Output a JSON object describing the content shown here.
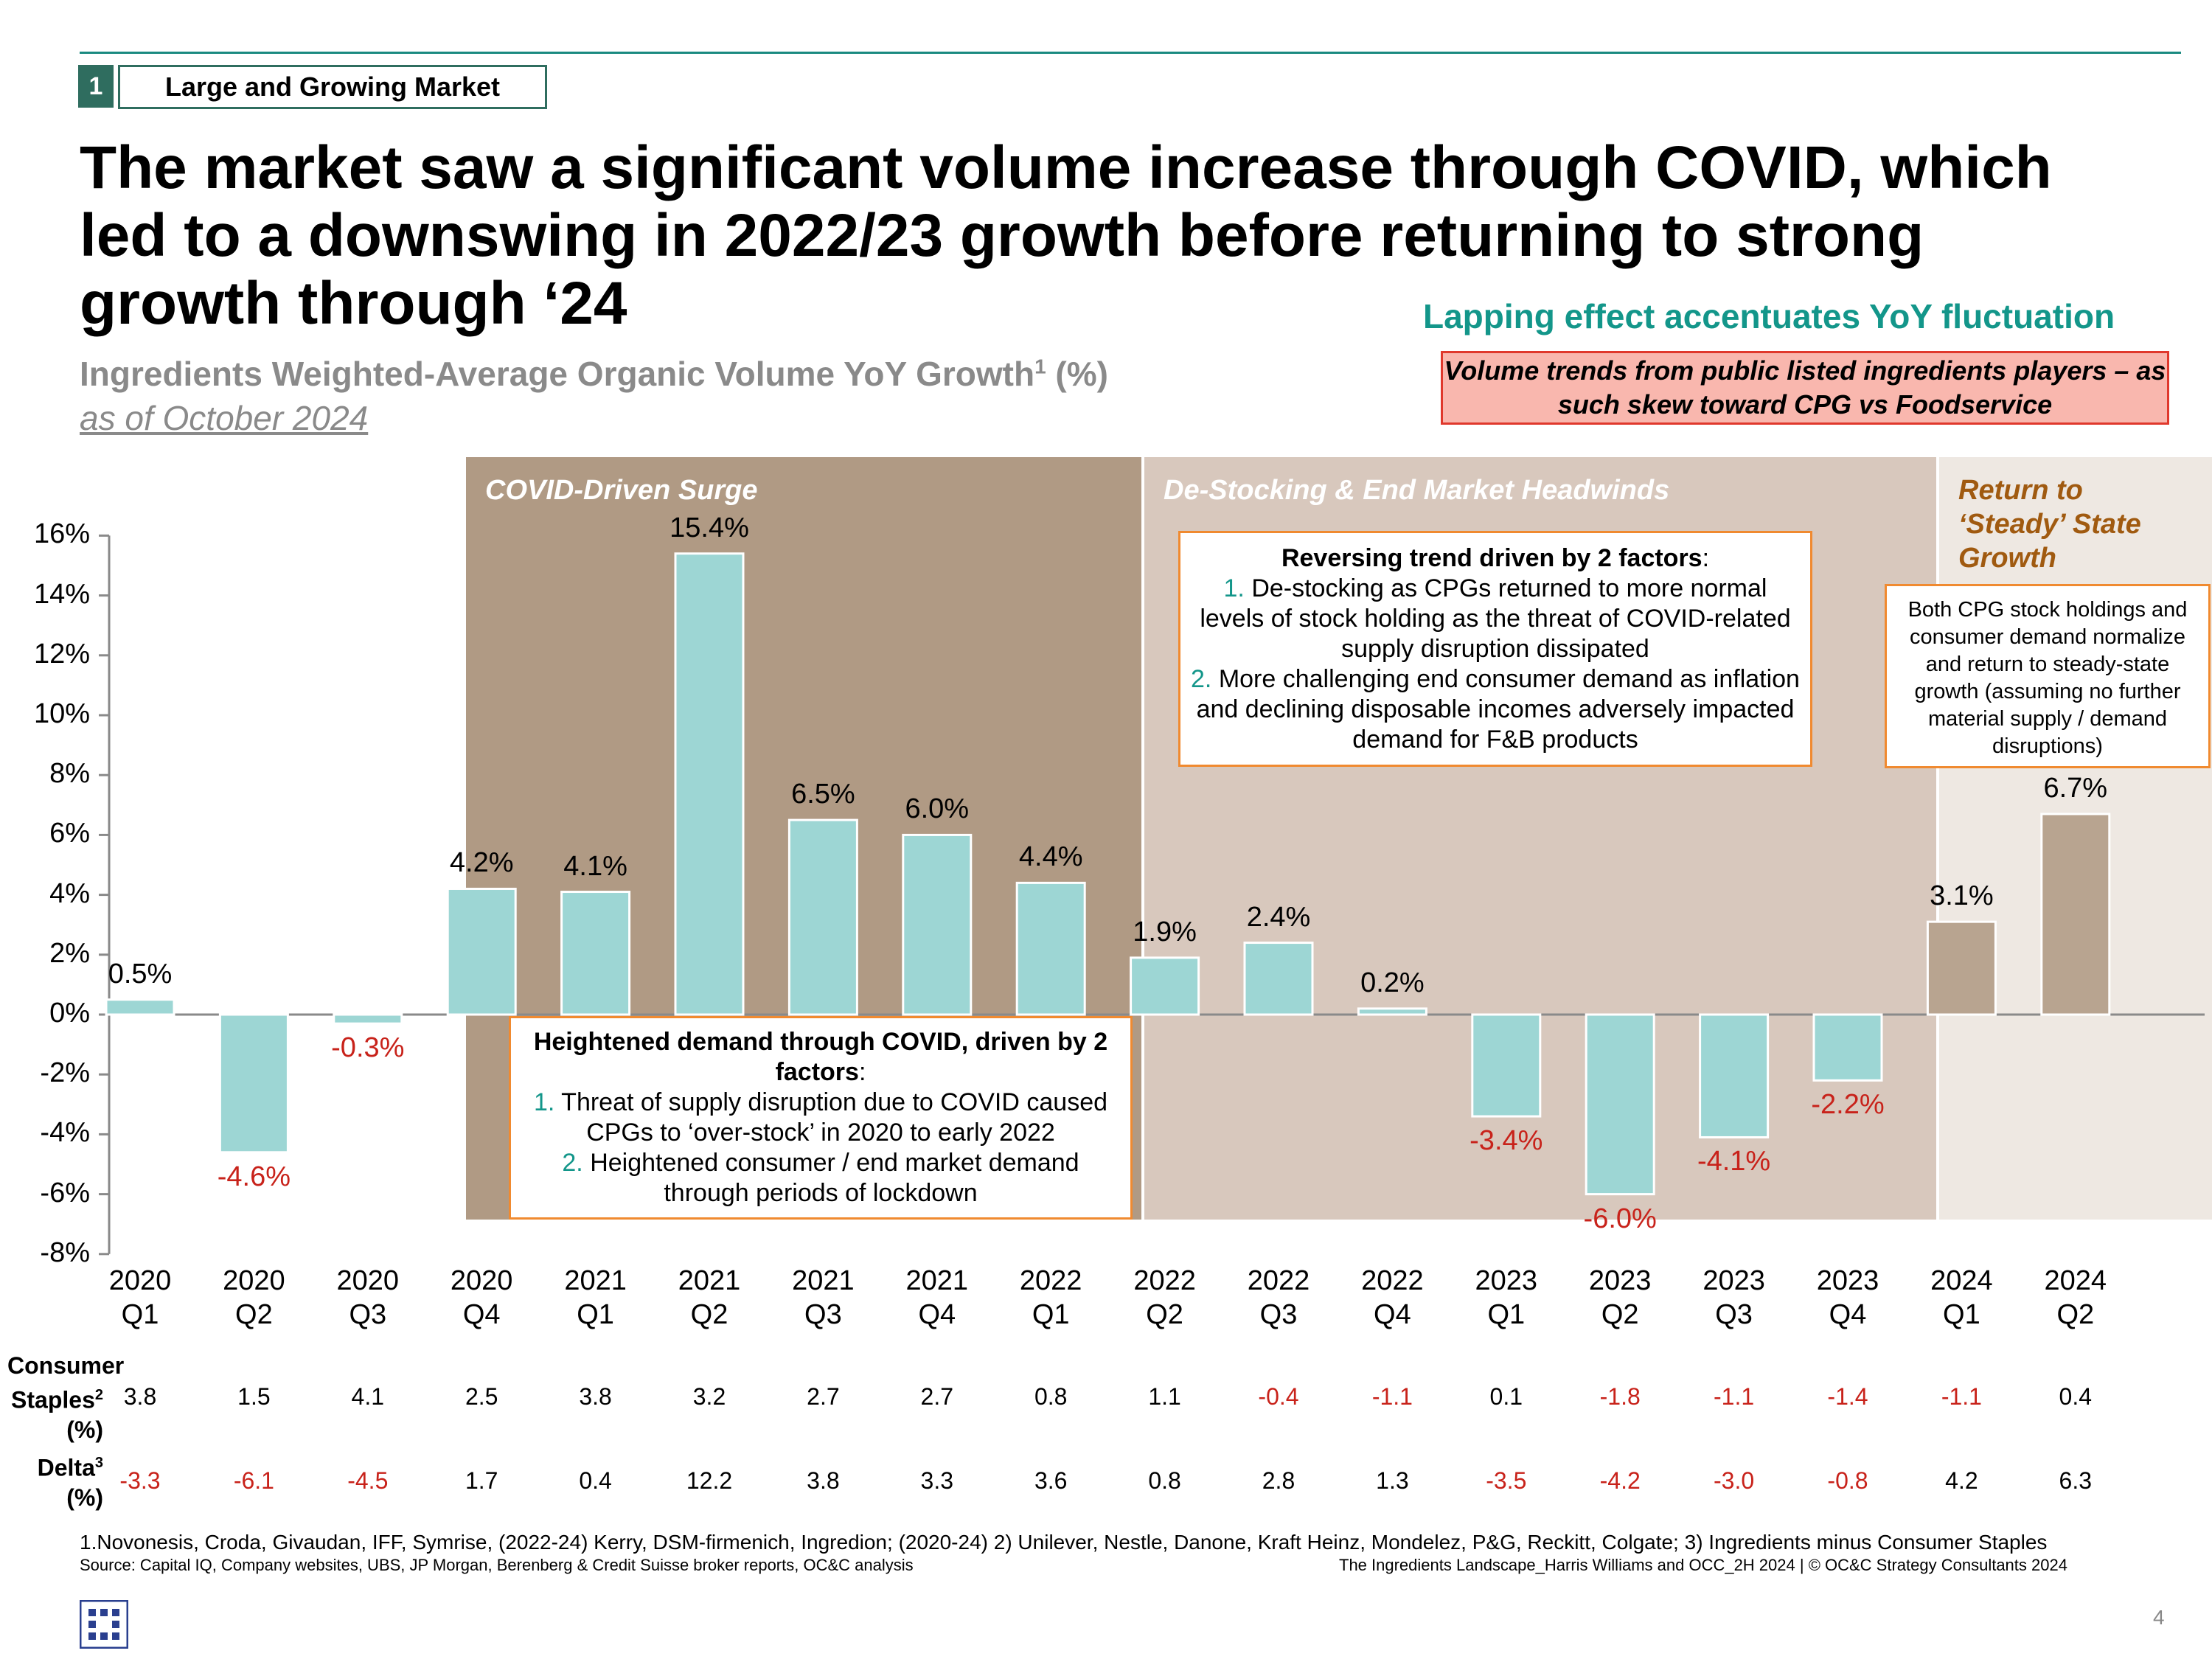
{
  "section": {
    "number": "1",
    "label": "Large and Growing Market"
  },
  "title_lines": [
    "The market saw a significant volume increase through COVID, which",
    "led to a downswing in 2022/23 growth before returning to strong",
    "growth through ‘24"
  ],
  "lapping_note": "Lapping effect accentuates YoY fluctuation",
  "red_note": "Volume trends from public listed ingredients players – as such skew toward CPG vs Foodservice",
  "subtitle": {
    "text": "Ingredients Weighted-Average Organic Volume YoY Growth",
    "sup": "1",
    "suffix": " (%)"
  },
  "as_of": "as of October 2024",
  "bands": {
    "covid": "COVID-Driven Surge",
    "destock": "De-Stocking & End Market Headwinds",
    "return_lines": [
      "Return to",
      "‘Steady’ State",
      "Growth"
    ]
  },
  "boxes": {
    "covid_box": {
      "heading": "Heightened demand through COVID, driven by 2 factors",
      "colon": ":",
      "items": [
        {
          "num": "1.",
          "text": "Threat of supply disruption due to COVID caused CPGs to ‘over-stock’ in 2020 to early 2022"
        },
        {
          "num": "2.",
          "text": "Heightened consumer / end market demand through periods of lockdown"
        }
      ]
    },
    "destock_box": {
      "heading": "Reversing trend driven by 2 factors",
      "colon": ":",
      "items": [
        {
          "num": "1.",
          "text": "De-stocking as CPGs returned to more normal levels of stock holding as the threat of COVID-related supply disruption dissipated"
        },
        {
          "num": "2.",
          "text": "More challenging end consumer demand as inflation and declining disposable incomes adversely impacted demand for F&B products"
        }
      ]
    },
    "steady_box": "Both CPG stock holdings and consumer demand normalize and return to steady-state growth (assuming no further material supply / demand disruptions)"
  },
  "chart_data": {
    "type": "bar",
    "title": "Ingredients Weighted-Average Organic Volume YoY Growth (%)",
    "xlabel": "",
    "ylabel": "",
    "ylim": [
      -8,
      16
    ],
    "yticks": [
      -8,
      -6,
      -4,
      -2,
      0,
      2,
      4,
      6,
      8,
      10,
      12,
      14,
      16
    ],
    "ytick_labels": [
      "-8%",
      "-6%",
      "-4%",
      "-2%",
      "0%",
      "2%",
      "4%",
      "6%",
      "8%",
      "10%",
      "12%",
      "14%",
      "16%"
    ],
    "categories": [
      [
        "2020",
        "Q1"
      ],
      [
        "2020",
        "Q2"
      ],
      [
        "2020",
        "Q3"
      ],
      [
        "2020",
        "Q4"
      ],
      [
        "2021",
        "Q1"
      ],
      [
        "2021",
        "Q2"
      ],
      [
        "2021",
        "Q3"
      ],
      [
        "2021",
        "Q4"
      ],
      [
        "2022",
        "Q1"
      ],
      [
        "2022",
        "Q2"
      ],
      [
        "2022",
        "Q3"
      ],
      [
        "2022",
        "Q4"
      ],
      [
        "2023",
        "Q1"
      ],
      [
        "2023",
        "Q2"
      ],
      [
        "2023",
        "Q3"
      ],
      [
        "2023",
        "Q4"
      ],
      [
        "2024",
        "Q1"
      ],
      [
        "2024",
        "Q2"
      ]
    ],
    "values": [
      0.5,
      -4.6,
      -0.3,
      4.2,
      4.1,
      15.4,
      6.5,
      6.0,
      4.4,
      1.9,
      2.4,
      0.2,
      -3.4,
      -6.0,
      -4.1,
      -2.2,
      3.1,
      6.7
    ],
    "value_labels": [
      "0.5%",
      "-4.6%",
      "-0.3%",
      "4.2%",
      "4.1%",
      "15.4%",
      "6.5%",
      "6.0%",
      "4.4%",
      "1.9%",
      "2.4%",
      "0.2%",
      "-3.4%",
      "-6.0%",
      "-4.1%",
      "-2.2%",
      "3.1%",
      "6.7%"
    ],
    "bar_colors": [
      "#9dd6d4",
      "#9dd6d4",
      "#9dd6d4",
      "#9dd6d4",
      "#9dd6d4",
      "#9dd6d4",
      "#9dd6d4",
      "#9dd6d4",
      "#9dd6d4",
      "#9dd6d4",
      "#9dd6d4",
      "#9dd6d4",
      "#9dd6d4",
      "#9dd6d4",
      "#9dd6d4",
      "#9dd6d4",
      "#b8a490",
      "#b8a490"
    ],
    "negative_label_color": "#c8221a",
    "grid": false
  },
  "table": {
    "rows": [
      {
        "label_lines": [
          "Consumer",
          "Staples",
          "(%)"
        ],
        "label_sup": "2",
        "values": [
          "3.8",
          "1.5",
          "4.1",
          "2.5",
          "3.8",
          "3.2",
          "2.7",
          "2.7",
          "0.8",
          "1.1",
          "-0.4",
          "-1.1",
          "0.1",
          "-1.8",
          "-1.1",
          "-1.4",
          "-1.1",
          "0.4"
        ]
      },
      {
        "label_lines": [
          "Delta",
          "(%)"
        ],
        "label_sup": "3",
        "values": [
          "-3.3",
          "-6.1",
          "-4.5",
          "1.7",
          "0.4",
          "12.2",
          "3.8",
          "3.3",
          "3.6",
          "0.8",
          "2.8",
          "1.3",
          "-3.5",
          "-4.2",
          "-3.0",
          "-0.8",
          "4.2",
          "6.3"
        ]
      }
    ]
  },
  "footnote": "1.Novonesis, Croda, Givaudan, IFF, Symrise, (2022-24) Kerry, DSM-firmenich, Ingredion; (2020-24) 2) Unilever, Nestle, Danone, Kraft Heinz, Mondelez, P&G, Reckitt, Colgate; 3) Ingredients minus Consumer Staples",
  "source": "Source: Capital IQ, Company websites, UBS, JP Morgan, Berenberg & Credit Suisse broker reports, OC&C analysis",
  "credit": "The Ingredients Landscape_Harris Williams and OCC_2H 2024  | © OC&C Strategy Consultants 2024",
  "page_number": "4"
}
